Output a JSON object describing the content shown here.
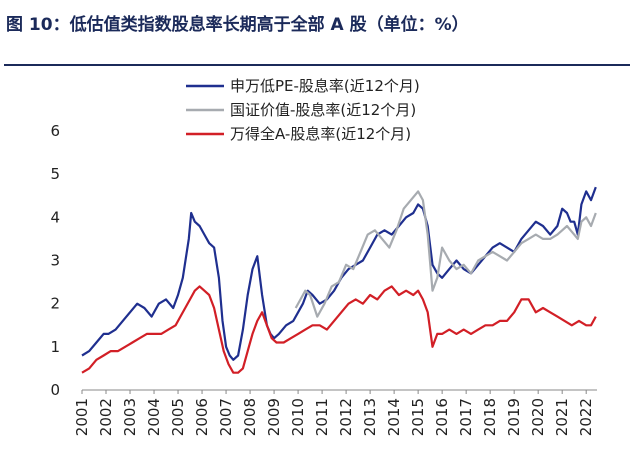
{
  "header": {
    "title": "图 10：低估值类指数股息率长期高于全部 A 股（单位：%）"
  },
  "chart_data": {
    "type": "line",
    "ylim": [
      0,
      6
    ],
    "yticks": [
      "0",
      "1",
      "2",
      "3",
      "4",
      "5",
      "6"
    ],
    "xlim": [
      2001,
      2022.45
    ],
    "xticks": [
      "2001",
      "2002",
      "2003",
      "2004",
      "2005",
      "2006",
      "2007",
      "2008",
      "2009",
      "2010",
      "2011",
      "2012",
      "2013",
      "2014",
      "2015",
      "2016",
      "2017",
      "2018",
      "2019",
      "2020",
      "2021",
      "2022"
    ],
    "grid": false,
    "legend_position": "top",
    "series": [
      {
        "name": "申万低PE-股息率(近12个月)",
        "color": "#1f2f8f",
        "x": [
          2001.0,
          2001.3,
          2001.6,
          2001.9,
          2002.1,
          2002.4,
          2002.7,
          2003.0,
          2003.3,
          2003.6,
          2003.9,
          2004.2,
          2004.5,
          2004.8,
          2005.0,
          2005.2,
          2005.45,
          2005.55,
          2005.7,
          2005.9,
          2006.1,
          2006.3,
          2006.5,
          2006.7,
          2006.85,
          2007.0,
          2007.15,
          2007.3,
          2007.5,
          2007.7,
          2007.9,
          2008.1,
          2008.3,
          2008.5,
          2008.7,
          2008.85,
          2009.0,
          2009.2,
          2009.5,
          2009.8,
          2010.0,
          2010.2,
          2010.4,
          2010.6,
          2010.9,
          2011.2,
          2011.5,
          2011.8,
          2012.1,
          2012.4,
          2012.7,
          2013.0,
          2013.3,
          2013.6,
          2013.9,
          2014.2,
          2014.5,
          2014.8,
          2015.0,
          2015.2,
          2015.4,
          2015.6,
          2015.8,
          2016.0,
          2016.3,
          2016.6,
          2016.9,
          2017.2,
          2017.5,
          2017.8,
          2018.1,
          2018.4,
          2018.7,
          2019.0,
          2019.3,
          2019.6,
          2019.9,
          2020.2,
          2020.5,
          2020.8,
          2021.0,
          2021.2,
          2021.35,
          2021.5,
          2021.65,
          2021.8,
          2022.0,
          2022.2,
          2022.4
        ],
        "y": [
          0.8,
          0.9,
          1.1,
          1.3,
          1.3,
          1.4,
          1.6,
          1.8,
          2.0,
          1.9,
          1.7,
          2.0,
          2.1,
          1.9,
          2.2,
          2.6,
          3.5,
          4.1,
          3.9,
          3.8,
          3.6,
          3.4,
          3.3,
          2.6,
          1.6,
          1.0,
          0.8,
          0.7,
          0.8,
          1.4,
          2.2,
          2.8,
          3.1,
          2.2,
          1.5,
          1.3,
          1.2,
          1.3,
          1.5,
          1.6,
          1.8,
          2.0,
          2.3,
          2.2,
          2.0,
          2.1,
          2.3,
          2.6,
          2.8,
          2.9,
          3.0,
          3.3,
          3.6,
          3.7,
          3.6,
          3.8,
          4.0,
          4.1,
          4.3,
          4.2,
          3.8,
          2.9,
          2.7,
          2.6,
          2.8,
          3.0,
          2.8,
          2.7,
          2.9,
          3.1,
          3.3,
          3.4,
          3.3,
          3.2,
          3.5,
          3.7,
          3.9,
          3.8,
          3.6,
          3.8,
          4.2,
          4.1,
          3.9,
          3.9,
          3.6,
          4.3,
          4.6,
          4.4,
          4.7
        ]
      },
      {
        "name": "国证价值-股息率(近12个月)",
        "color": "#a7abb0",
        "x": [
          2009.9,
          2010.1,
          2010.3,
          2010.5,
          2010.8,
          2011.1,
          2011.4,
          2011.7,
          2012.0,
          2012.3,
          2012.6,
          2012.9,
          2013.2,
          2013.5,
          2013.8,
          2014.1,
          2014.4,
          2014.7,
          2015.0,
          2015.2,
          2015.4,
          2015.6,
          2015.8,
          2016.0,
          2016.3,
          2016.6,
          2016.9,
          2017.2,
          2017.5,
          2017.8,
          2018.1,
          2018.4,
          2018.7,
          2019.0,
          2019.3,
          2019.6,
          2019.9,
          2020.2,
          2020.5,
          2020.8,
          2021.0,
          2021.2,
          2021.35,
          2021.5,
          2021.65,
          2021.8,
          2022.0,
          2022.2,
          2022.4
        ],
        "y": [
          1.9,
          2.1,
          2.3,
          2.2,
          1.7,
          2.0,
          2.4,
          2.5,
          2.9,
          2.8,
          3.2,
          3.6,
          3.7,
          3.5,
          3.3,
          3.7,
          4.2,
          4.4,
          4.6,
          4.4,
          3.6,
          2.3,
          2.6,
          3.3,
          3.0,
          2.8,
          2.9,
          2.7,
          3.0,
          3.1,
          3.2,
          3.1,
          3.0,
          3.2,
          3.4,
          3.5,
          3.6,
          3.5,
          3.5,
          3.6,
          3.7,
          3.8,
          3.7,
          3.6,
          3.5,
          3.9,
          4.0,
          3.8,
          4.1
        ]
      },
      {
        "name": "万得全A-股息率(近12个月)",
        "color": "#d21f26",
        "x": [
          2001.0,
          2001.3,
          2001.6,
          2001.9,
          2002.2,
          2002.5,
          2002.8,
          2003.1,
          2003.4,
          2003.7,
          2004.0,
          2004.3,
          2004.6,
          2004.9,
          2005.1,
          2005.3,
          2005.5,
          2005.7,
          2005.9,
          2006.1,
          2006.3,
          2006.5,
          2006.7,
          2006.9,
          2007.1,
          2007.3,
          2007.5,
          2007.7,
          2007.9,
          2008.1,
          2008.3,
          2008.5,
          2008.7,
          2008.9,
          2009.1,
          2009.4,
          2009.7,
          2010.0,
          2010.3,
          2010.6,
          2010.9,
          2011.2,
          2011.5,
          2011.8,
          2012.1,
          2012.4,
          2012.7,
          2013.0,
          2013.3,
          2013.6,
          2013.9,
          2014.2,
          2014.5,
          2014.8,
          2015.0,
          2015.2,
          2015.4,
          2015.6,
          2015.8,
          2016.0,
          2016.3,
          2016.6,
          2016.9,
          2017.2,
          2017.5,
          2017.8,
          2018.1,
          2018.4,
          2018.7,
          2019.0,
          2019.3,
          2019.6,
          2019.9,
          2020.2,
          2020.5,
          2020.8,
          2021.1,
          2021.4,
          2021.7,
          2022.0,
          2022.2,
          2022.4
        ],
        "y": [
          0.4,
          0.5,
          0.7,
          0.8,
          0.9,
          0.9,
          1.0,
          1.1,
          1.2,
          1.3,
          1.3,
          1.3,
          1.4,
          1.5,
          1.7,
          1.9,
          2.1,
          2.3,
          2.4,
          2.3,
          2.2,
          1.9,
          1.4,
          0.9,
          0.6,
          0.4,
          0.4,
          0.5,
          0.9,
          1.3,
          1.6,
          1.8,
          1.5,
          1.2,
          1.1,
          1.1,
          1.2,
          1.3,
          1.4,
          1.5,
          1.5,
          1.4,
          1.6,
          1.8,
          2.0,
          2.1,
          2.0,
          2.2,
          2.1,
          2.3,
          2.4,
          2.2,
          2.3,
          2.2,
          2.3,
          2.1,
          1.8,
          1.0,
          1.3,
          1.3,
          1.4,
          1.3,
          1.4,
          1.3,
          1.4,
          1.5,
          1.5,
          1.6,
          1.6,
          1.8,
          2.1,
          2.1,
          1.8,
          1.9,
          1.8,
          1.7,
          1.6,
          1.5,
          1.6,
          1.5,
          1.5,
          1.7
        ]
      }
    ]
  }
}
